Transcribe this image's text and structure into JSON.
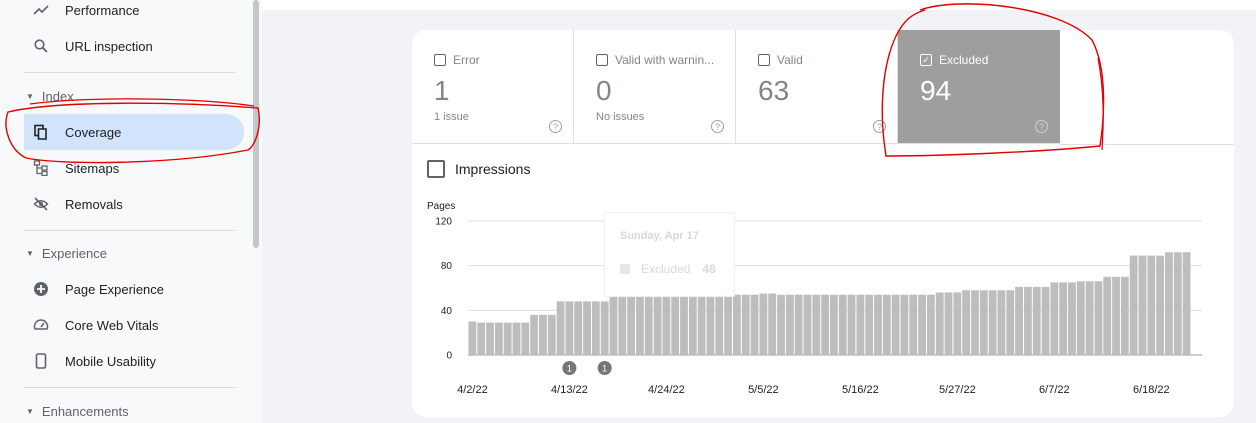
{
  "sidebar": {
    "items": [
      {
        "label": "Performance",
        "icon": "trending-up-icon"
      },
      {
        "label": "URL inspection",
        "icon": "search-icon"
      },
      {
        "label": "Coverage",
        "icon": "copy-pages-icon"
      },
      {
        "label": "Sitemaps",
        "icon": "sitemap-icon"
      },
      {
        "label": "Removals",
        "icon": "eye-off-icon"
      },
      {
        "label": "Page Experience",
        "icon": "plus-circle-icon"
      },
      {
        "label": "Core Web Vitals",
        "icon": "speedometer-icon"
      },
      {
        "label": "Mobile Usability",
        "icon": "phone-icon"
      }
    ],
    "sections": [
      {
        "label": "Index"
      },
      {
        "label": "Experience"
      },
      {
        "label": "Enhancements"
      }
    ]
  },
  "tiles": [
    {
      "label": "Error",
      "value": "1",
      "sub": "1 issue",
      "checked": false
    },
    {
      "label": "Valid with warnin...",
      "value": "0",
      "sub": "No issues",
      "checked": false
    },
    {
      "label": "Valid",
      "value": "63",
      "sub": "",
      "checked": false
    },
    {
      "label": "Excluded",
      "value": "94",
      "sub": "",
      "checked": true
    }
  ],
  "impressions_label": "Impressions",
  "tooltip": {
    "date": "Sunday, Apr 17",
    "series": "Excluded",
    "value": "48"
  },
  "colors": {
    "bar": "#bdbdbd",
    "selected_tile": "#9e9e9e",
    "active_nav": "#d2e3fc",
    "annotation": "#e00000"
  },
  "chart_data": {
    "type": "bar",
    "ylabel": "Pages",
    "ylim": [
      0,
      120
    ],
    "yticks": [
      0,
      40,
      80,
      120
    ],
    "xtick_labels": [
      "4/2/22",
      "4/13/22",
      "4/24/22",
      "5/5/22",
      "5/16/22",
      "5/27/22",
      "6/7/22",
      "6/18/22"
    ],
    "series": [
      {
        "name": "Excluded",
        "values": [
          30,
          29,
          29,
          29,
          29,
          29,
          29,
          36,
          36,
          36,
          48,
          48,
          48,
          48,
          48,
          48,
          52,
          52,
          52,
          52,
          52,
          52,
          52,
          52,
          52,
          52,
          53,
          53,
          53,
          54,
          54,
          54,
          54,
          55,
          55,
          54,
          54,
          54,
          54,
          54,
          54,
          54,
          54,
          54,
          54,
          54,
          54,
          54,
          54,
          54,
          54,
          54,
          54,
          56,
          56,
          56,
          58,
          58,
          58,
          58,
          58,
          58,
          61,
          61,
          61,
          61,
          65,
          65,
          65,
          66,
          66,
          66,
          70,
          70,
          70,
          89,
          89,
          89,
          89,
          92,
          92,
          92
        ]
      }
    ],
    "annotation_markers": [
      {
        "index": 11,
        "label": "1"
      },
      {
        "index": 15,
        "label": "1"
      }
    ],
    "grid": true
  }
}
